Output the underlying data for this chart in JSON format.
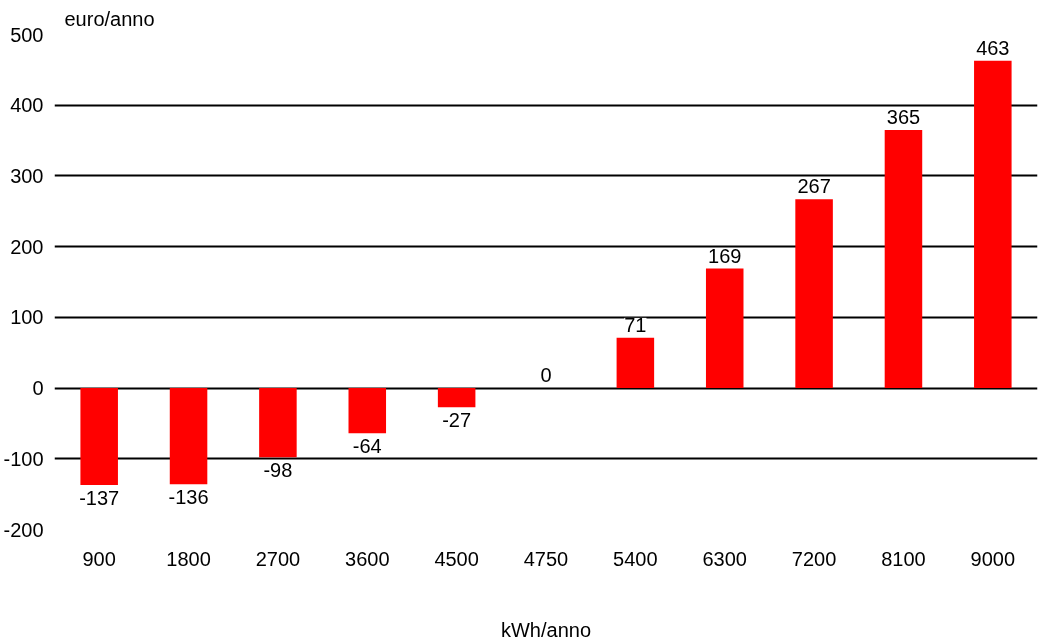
{
  "chart_data": {
    "type": "bar",
    "xlabel": "kWh/anno",
    "ylabel": "euro/anno",
    "categories": [
      "900",
      "1800",
      "2700",
      "3600",
      "4500",
      "4750",
      "5400",
      "6300",
      "7200",
      "8100",
      "9000"
    ],
    "values": [
      -137,
      -136,
      -98,
      -64,
      -27,
      0,
      71,
      169,
      267,
      365,
      463
    ],
    "color": "#ff0000",
    "ylim": [
      -200,
      500
    ],
    "yticks": [
      -200,
      -100,
      0,
      100,
      200,
      300,
      400,
      500
    ],
    "grid": "y",
    "data_labels": true
  }
}
